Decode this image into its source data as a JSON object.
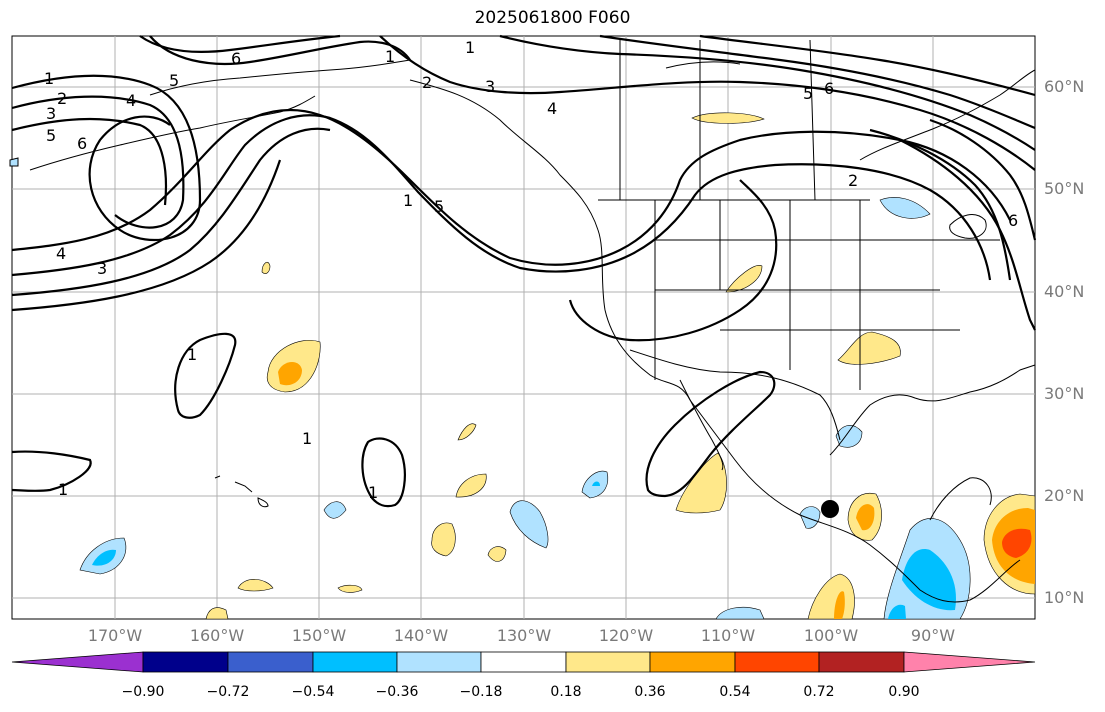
{
  "title": "2025061800 F060",
  "latitude_labels": [
    "60°N",
    "50°N",
    "40°N",
    "30°N",
    "20°N",
    "10°N"
  ],
  "longitude_labels": [
    "170°W",
    "160°W",
    "150°W",
    "140°W",
    "130°W",
    "120°W",
    "110°W",
    "100°W",
    "90°W"
  ],
  "contour_labels": [
    "1",
    "2",
    "3",
    "4",
    "5",
    "6"
  ],
  "colorbar": {
    "labels": [
      "−0.90",
      "−0.72",
      "−0.54",
      "−0.36",
      "−0.18",
      "0.18",
      "0.36",
      "0.54",
      "0.72",
      "0.90"
    ],
    "colors": [
      "#9b30d0",
      "#00008b",
      "#3a5fcd",
      "#00bfff",
      "#b0e2ff",
      "#ffffff",
      "#ffe88a",
      "#ffa500",
      "#ff4500",
      "#b22222",
      "#ff82ab"
    ]
  },
  "colors": {
    "grid": "#b0b0b0",
    "coast": "#000000",
    "tick_label": "#7a7a7a"
  }
}
